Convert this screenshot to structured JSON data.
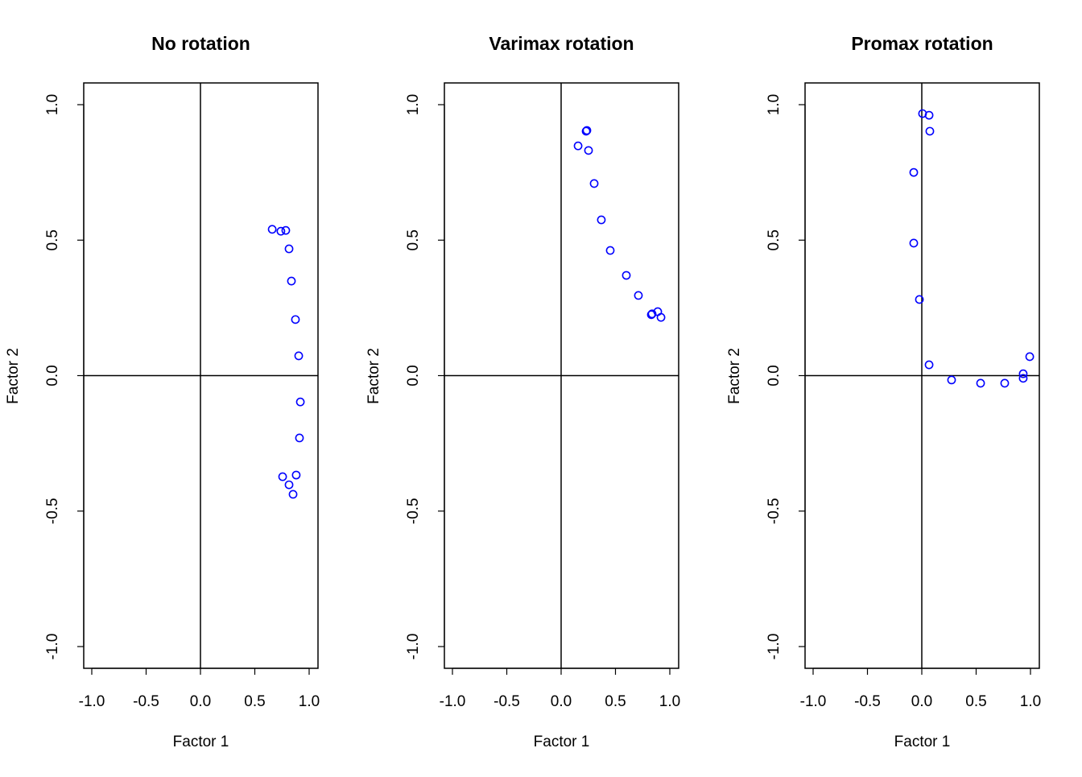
{
  "chart_data": [
    {
      "type": "scatter",
      "title": "No rotation",
      "xlabel": "Factor 1",
      "ylabel": "Factor 2",
      "xlim": [
        -1.07,
        1.08
      ],
      "ylim": [
        -1.08,
        1.08
      ],
      "xticks": [
        "-1.0",
        "-0.5",
        "0.0",
        "0.5",
        "1.0"
      ],
      "yticks": [
        "-1.0",
        "-0.5",
        "0.0",
        "0.5",
        "1.0"
      ],
      "reference_lines": {
        "x": 0,
        "y": 0
      },
      "marker": "open-circle",
      "color": "#0000ff",
      "points": [
        [
          0.66,
          0.54
        ],
        [
          0.74,
          0.533
        ],
        [
          0.785,
          0.536
        ],
        [
          0.815,
          0.468
        ],
        [
          0.837,
          0.349
        ],
        [
          0.874,
          0.207
        ],
        [
          0.904,
          0.073
        ],
        [
          0.919,
          -0.097
        ],
        [
          0.911,
          -0.23
        ],
        [
          0.881,
          -0.367
        ],
        [
          0.756,
          -0.373
        ],
        [
          0.815,
          -0.403
        ],
        [
          0.852,
          -0.438
        ]
      ]
    },
    {
      "type": "scatter",
      "title": "Varimax rotation",
      "xlabel": "Factor 1",
      "ylabel": "Factor 2",
      "xlim": [
        -1.07,
        1.08
      ],
      "ylim": [
        -1.08,
        1.08
      ],
      "xticks": [
        "-1.0",
        "-0.5",
        "0.0",
        "0.5",
        "1.0"
      ],
      "yticks": [
        "-1.0",
        "-0.5",
        "0.0",
        "0.5",
        "1.0"
      ],
      "reference_lines": {
        "x": 0,
        "y": 0
      },
      "marker": "open-circle",
      "color": "#0000ff",
      "points": [
        [
          0.237,
          0.905
        ],
        [
          0.23,
          0.902
        ],
        [
          0.156,
          0.848
        ],
        [
          0.252,
          0.831
        ],
        [
          0.304,
          0.709
        ],
        [
          0.37,
          0.575
        ],
        [
          0.452,
          0.462
        ],
        [
          0.6,
          0.37
        ],
        [
          0.711,
          0.296
        ],
        [
          0.83,
          0.225
        ],
        [
          0.837,
          0.228
        ],
        [
          0.889,
          0.236
        ],
        [
          0.919,
          0.215
        ]
      ]
    },
    {
      "type": "scatter",
      "title": "Promax rotation",
      "xlabel": "Factor 1",
      "ylabel": "Factor 2",
      "xlim": [
        -1.07,
        1.08
      ],
      "ylim": [
        -1.08,
        1.08
      ],
      "xticks": [
        "-1.0",
        "-0.5",
        "0.0",
        "0.5",
        "1.0"
      ],
      "yticks": [
        "-1.0",
        "-0.5",
        "0.0",
        "0.5",
        "1.0"
      ],
      "reference_lines": {
        "x": 0,
        "y": 0
      },
      "marker": "open-circle",
      "color": "#0000ff",
      "points": [
        [
          0.007,
          0.967
        ],
        [
          0.067,
          0.961
        ],
        [
          0.074,
          0.902
        ],
        [
          -0.074,
          0.75
        ],
        [
          -0.074,
          0.489
        ],
        [
          -0.022,
          0.281
        ],
        [
          0.067,
          0.04
        ],
        [
          0.274,
          -0.016
        ],
        [
          0.541,
          -0.028
        ],
        [
          0.763,
          -0.028
        ],
        [
          0.933,
          0.007
        ],
        [
          0.933,
          -0.01
        ],
        [
          0.993,
          0.07
        ]
      ]
    }
  ]
}
